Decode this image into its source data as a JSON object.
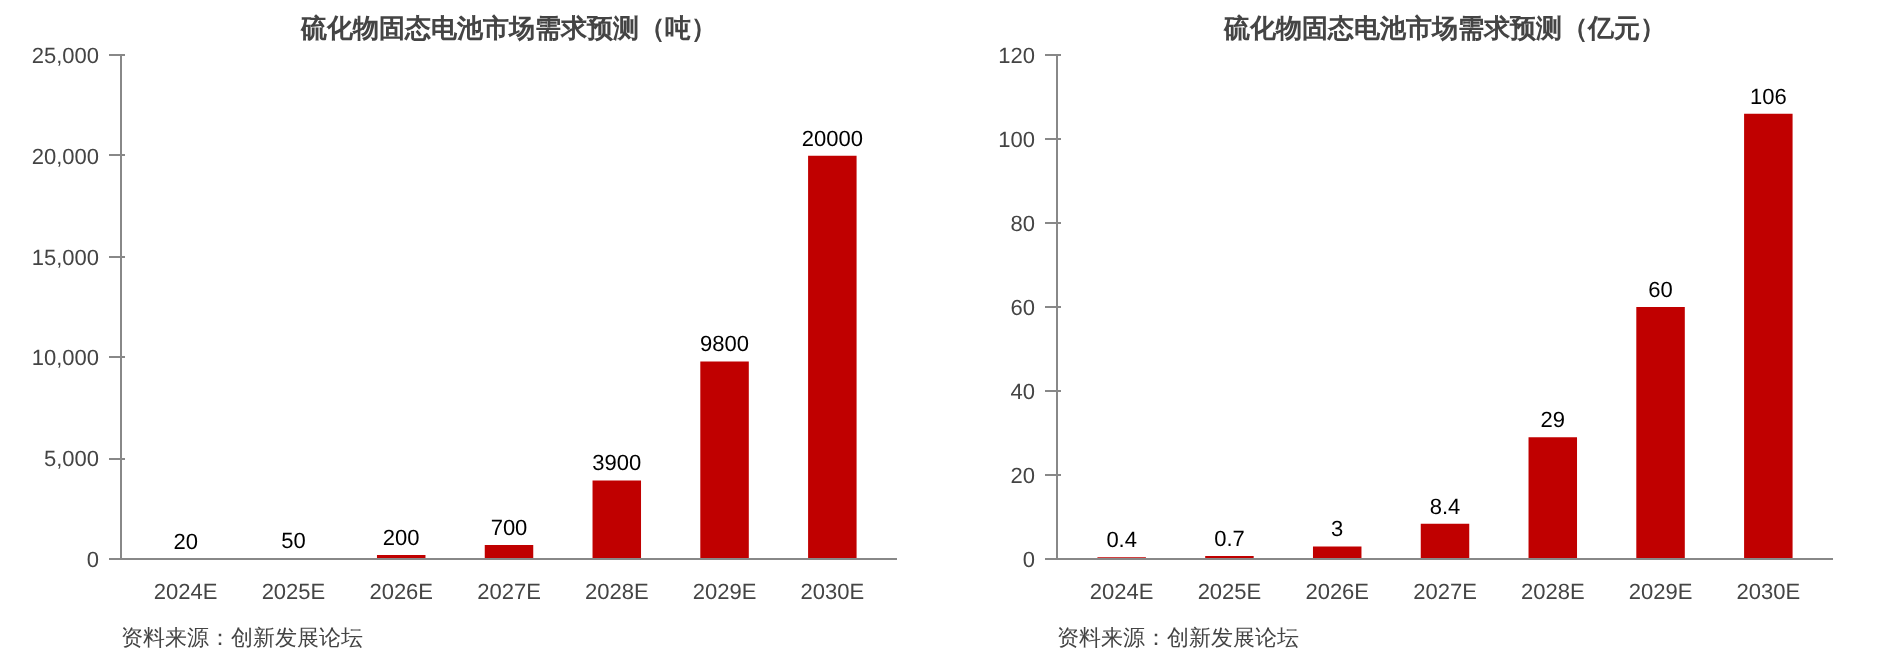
{
  "chart_data": [
    {
      "type": "bar",
      "title": "硫化物固态电池市场需求预测（吨）",
      "categories": [
        "2024E",
        "2025E",
        "2026E",
        "2027E",
        "2028E",
        "2029E",
        "2030E"
      ],
      "values": [
        20,
        50,
        200,
        700,
        3900,
        9800,
        20000
      ],
      "color": "#c00000",
      "ylim": [
        0,
        25000
      ],
      "yticks": [
        0,
        {
          "value": 5000,
          "label": "5,000"
        },
        {
          "value": 10000,
          "label": "10,000"
        },
        {
          "value": 15000,
          "label": "15,000"
        },
        {
          "value": 20000,
          "label": "20,000"
        },
        {
          "value": 25000,
          "label": "25,000"
        }
      ],
      "grid": false,
      "data_labels": true,
      "annotations": [
        "资料来源：创新发展论坛"
      ]
    },
    {
      "type": "bar",
      "title": "硫化物固态电池市场需求预测（亿元）",
      "categories": [
        "2024E",
        "2025E",
        "2026E",
        "2027E",
        "2028E",
        "2029E",
        "2030E"
      ],
      "values": [
        0.4,
        0.7,
        3,
        8.4,
        29,
        60,
        106
      ],
      "color": "#c00000",
      "ylim": [
        0,
        120
      ],
      "yticks": [
        0,
        20,
        40,
        60,
        80,
        100,
        120
      ],
      "grid": false,
      "data_labels": true,
      "annotations": [
        "资料来源：创新发展论坛"
      ]
    }
  ]
}
